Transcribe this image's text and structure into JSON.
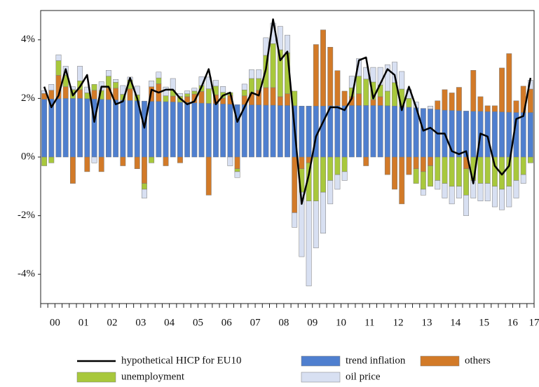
{
  "chart_data": {
    "type": "bar",
    "categories": [
      null,
      "00",
      null,
      null,
      null,
      "01",
      null,
      null,
      null,
      "02",
      null,
      null,
      null,
      "03",
      null,
      null,
      null,
      "04",
      null,
      null,
      null,
      "05",
      null,
      null,
      null,
      "06",
      null,
      null,
      null,
      "07",
      null,
      null,
      null,
      "08",
      null,
      null,
      null,
      "09",
      null,
      null,
      null,
      "10",
      null,
      null,
      null,
      "11",
      null,
      null,
      null,
      "12",
      null,
      null,
      null,
      "13",
      null,
      null,
      null,
      "14",
      null,
      null,
      null,
      "15",
      null,
      null,
      null,
      "16",
      null,
      null,
      "17"
    ],
    "ylim": [
      -5,
      5
    ],
    "yticks": [
      {
        "value": -4,
        "label": "-4%"
      },
      {
        "value": -2,
        "label": "-2%"
      },
      {
        "value": 0,
        "label": "0%"
      },
      {
        "value": 2,
        "label": "2%"
      },
      {
        "value": 4,
        "label": "4%"
      }
    ],
    "series": [
      {
        "name": "hypothetical HICP for EU10",
        "type": "line",
        "color": "#000000",
        "values": [
          2.4,
          1.7,
          2.1,
          3.0,
          2.1,
          2.4,
          2.8,
          1.2,
          2.4,
          2.4,
          1.8,
          1.9,
          2.7,
          2.0,
          1.0,
          2.3,
          2.2,
          2.3,
          2.3,
          2.0,
          1.8,
          1.9,
          2.4,
          3.0,
          1.8,
          2.1,
          2.2,
          1.2,
          1.7,
          2.2,
          2.1,
          3.0,
          4.7,
          3.3,
          3.6,
          1.0,
          -1.6,
          -0.6,
          0.7,
          1.2,
          1.7,
          1.7,
          1.6,
          2.0,
          3.3,
          3.4,
          2.0,
          2.5,
          3.0,
          2.8,
          1.6,
          2.4,
          1.7,
          0.9,
          1.0,
          0.8,
          0.8,
          0.2,
          0.1,
          0.2,
          -0.9,
          0.8,
          0.7,
          -0.3,
          -0.6,
          -0.3,
          1.3,
          1.4,
          2.7
        ]
      },
      {
        "name": "trend inflation",
        "color": "#4f7fcf",
        "values": [
          1.97,
          1.98,
          1.99,
          2.0,
          2.0,
          2.0,
          1.99,
          1.98,
          1.97,
          1.96,
          1.95,
          1.94,
          1.93,
          1.92,
          1.91,
          1.9,
          1.9,
          1.89,
          1.88,
          1.87,
          1.86,
          1.85,
          1.84,
          1.83,
          1.82,
          1.81,
          1.8,
          1.79,
          1.79,
          1.78,
          1.78,
          1.77,
          1.77,
          1.76,
          1.76,
          1.75,
          1.74,
          1.74,
          1.74,
          1.74,
          1.75,
          1.75,
          1.75,
          1.76,
          1.76,
          1.76,
          1.76,
          1.76,
          1.75,
          1.74,
          1.72,
          1.7,
          1.68,
          1.66,
          1.64,
          1.62,
          1.6,
          1.59,
          1.58,
          1.57,
          1.56,
          1.56,
          1.55,
          1.55,
          1.54,
          1.53,
          1.52,
          1.52,
          1.52
        ]
      },
      {
        "name": "others",
        "color": "#d27a28",
        "values": [
          0.2,
          0.3,
          0.8,
          0.4,
          -0.9,
          0.3,
          -0.5,
          0.3,
          -0.5,
          0.4,
          0.4,
          -0.3,
          0.4,
          -0.4,
          -0.9,
          0.5,
          0.6,
          -0.3,
          0.2,
          -0.2,
          0.2,
          0.3,
          0.4,
          -1.3,
          0.3,
          0.2,
          0.3,
          -0.4,
          0.3,
          0.4,
          0.5,
          0.6,
          0.6,
          0.3,
          0.4,
          -1.9,
          -0.4,
          -0.2,
          2.1,
          2.6,
          2.0,
          1.2,
          0.5,
          0.3,
          0.4,
          -0.3,
          0.2,
          0.3,
          -0.6,
          -1.1,
          -1.6,
          -0.6,
          -0.4,
          -0.5,
          -0.3,
          0.3,
          0.7,
          0.6,
          0.8,
          -0.4,
          1.4,
          0.5,
          0.2,
          0.2,
          1.5,
          2.0,
          0.4,
          0.9,
          0.8
        ]
      },
      {
        "name": "unemployment",
        "color": "#a8c83c",
        "values": [
          -0.3,
          -0.2,
          0.5,
          0.4,
          0.3,
          0.3,
          0.2,
          0.2,
          0.3,
          0.4,
          0.2,
          0.2,
          0.3,
          0.2,
          -0.2,
          -0.2,
          0.2,
          0.2,
          0.2,
          0.2,
          0.1,
          0.1,
          0.2,
          0.5,
          0.3,
          0.2,
          0.1,
          -0.1,
          0.2,
          0.5,
          0.4,
          1.1,
          1.5,
          1.6,
          1.4,
          0.5,
          -0.8,
          -1.3,
          -1.5,
          -1.2,
          -0.8,
          -0.6,
          -0.5,
          0.3,
          0.6,
          0.9,
          0.6,
          0.4,
          0.5,
          0.8,
          0.6,
          0.3,
          -0.5,
          -0.6,
          -0.7,
          -0.8,
          -0.9,
          -1.0,
          -1.0,
          -0.9,
          -0.8,
          -0.9,
          -0.9,
          -1.0,
          -1.1,
          -1.0,
          -0.8,
          -0.6,
          -0.2
        ]
      },
      {
        "name": "oil price",
        "color": "#d8e0f2",
        "values": [
          0.1,
          0.2,
          0.2,
          0.3,
          0.1,
          0.5,
          0.2,
          -0.2,
          0.3,
          0.2,
          0.1,
          0.3,
          0.1,
          0.3,
          -0.3,
          0.2,
          0.2,
          0.3,
          0.4,
          0.1,
          0.1,
          0.1,
          0.3,
          0.4,
          0.2,
          0.2,
          -0.3,
          -0.2,
          0.2,
          0.3,
          0.3,
          0.6,
          0.7,
          0.8,
          0.6,
          -0.5,
          -2.2,
          -2.9,
          -1.6,
          -1.4,
          -0.8,
          -0.5,
          -0.3,
          0.4,
          0.6,
          0.4,
          0.5,
          0.6,
          0.9,
          0.7,
          0.6,
          0.3,
          0.2,
          -0.2,
          0.1,
          -0.3,
          -0.5,
          -0.6,
          -0.4,
          -0.7,
          -0.6,
          -0.6,
          -0.6,
          -0.7,
          -0.7,
          -0.7,
          -0.6,
          -0.3,
          0.3
        ]
      }
    ]
  }
}
